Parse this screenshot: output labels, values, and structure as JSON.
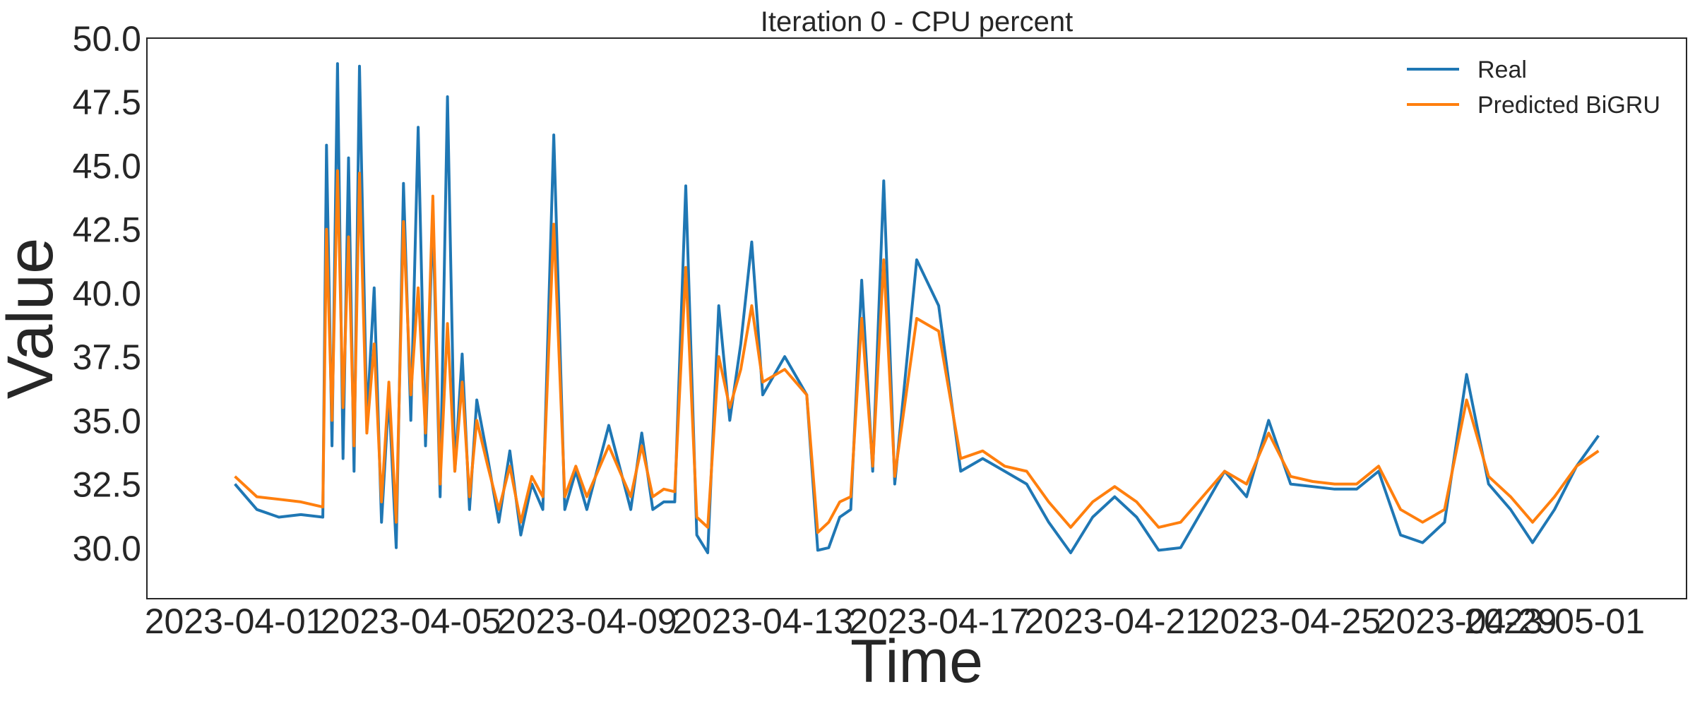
{
  "chart_data": {
    "type": "line",
    "title": "Iteration 0 - CPU percent",
    "xlabel": "Time",
    "ylabel": "Value",
    "x_ticks": [
      "2023-04-01",
      "2023-04-05",
      "2023-04-09",
      "2023-04-13",
      "2023-04-17",
      "2023-04-21",
      "2023-04-25",
      "2023-04-29",
      "2023-05-01"
    ],
    "y_ticks": [
      "30.0",
      "32.5",
      "35.0",
      "37.5",
      "40.0",
      "42.5",
      "45.0",
      "47.5",
      "50.0"
    ],
    "xlim": [
      "2023-03-30",
      "2023-05-04"
    ],
    "ylim": [
      28.0,
      50.0
    ],
    "grid": false,
    "legend_position": "top-right",
    "colors": {
      "Real": "#1f77b4",
      "Predicted BiGRU": "#ff7f0e"
    },
    "series": [
      {
        "name": "Real",
        "x": [
          "2023-04-01",
          "2023-04-01T12:00",
          "2023-04-02",
          "2023-04-02T12:00",
          "2023-04-03",
          "2023-04-03T02:00",
          "2023-04-03T05:00",
          "2023-04-03T08:00",
          "2023-04-03T11:00",
          "2023-04-03T14:00",
          "2023-04-03T17:00",
          "2023-04-03T20:00",
          "2023-04-04",
          "2023-04-04T04:00",
          "2023-04-04T08:00",
          "2023-04-04T12:00",
          "2023-04-04T16:00",
          "2023-04-04T20:00",
          "2023-04-05",
          "2023-04-05T04:00",
          "2023-04-05T08:00",
          "2023-04-05T12:00",
          "2023-04-05T16:00",
          "2023-04-05T20:00",
          "2023-04-06",
          "2023-04-06T04:00",
          "2023-04-06T08:00",
          "2023-04-06T12:00",
          "2023-04-06T18:00",
          "2023-04-07",
          "2023-04-07T06:00",
          "2023-04-07T12:00",
          "2023-04-07T18:00",
          "2023-04-08",
          "2023-04-08T06:00",
          "2023-04-08T12:00",
          "2023-04-08T18:00",
          "2023-04-09",
          "2023-04-09T12:00",
          "2023-04-10",
          "2023-04-10T06:00",
          "2023-04-10T12:00",
          "2023-04-10T18:00",
          "2023-04-11",
          "2023-04-11T06:00",
          "2023-04-11T12:00",
          "2023-04-11T18:00",
          "2023-04-12",
          "2023-04-12T06:00",
          "2023-04-12T12:00",
          "2023-04-12T18:00",
          "2023-04-13",
          "2023-04-13T12:00",
          "2023-04-14",
          "2023-04-14T06:00",
          "2023-04-14T12:00",
          "2023-04-14T18:00",
          "2023-04-15",
          "2023-04-15T06:00",
          "2023-04-15T12:00",
          "2023-04-15T18:00",
          "2023-04-16",
          "2023-04-16T12:00",
          "2023-04-17",
          "2023-04-17T12:00",
          "2023-04-18",
          "2023-04-18T12:00",
          "2023-04-19",
          "2023-04-19T12:00",
          "2023-04-20",
          "2023-04-20T12:00",
          "2023-04-21",
          "2023-04-21T12:00",
          "2023-04-22",
          "2023-04-22T12:00",
          "2023-04-23",
          "2023-04-23T12:00",
          "2023-04-24",
          "2023-04-24T12:00",
          "2023-04-25",
          "2023-04-25T12:00",
          "2023-04-26",
          "2023-04-26T12:00",
          "2023-04-27",
          "2023-04-27T12:00",
          "2023-04-28",
          "2023-04-28T12:00",
          "2023-04-29",
          "2023-04-29T12:00",
          "2023-04-30",
          "2023-04-30T12:00",
          "2023-05-01",
          "2023-05-01T12:00",
          "2023-05-02"
        ],
        "values": [
          32.5,
          31.5,
          31.2,
          31.3,
          31.2,
          45.8,
          34.0,
          49.0,
          33.5,
          45.3,
          33.0,
          48.9,
          35.0,
          40.2,
          31.0,
          36.0,
          30.0,
          44.3,
          35.0,
          46.5,
          34.0,
          43.0,
          32.0,
          47.7,
          33.0,
          37.6,
          31.5,
          35.8,
          33.5,
          31.0,
          33.8,
          30.5,
          32.5,
          31.5,
          46.2,
          31.5,
          33.0,
          31.5,
          34.8,
          31.5,
          34.5,
          31.5,
          31.8,
          31.8,
          44.2,
          30.5,
          29.8,
          39.5,
          35.0,
          38.0,
          42.0,
          36.0,
          37.5,
          36.0,
          29.9,
          30.0,
          31.2,
          31.5,
          40.5,
          33.0,
          44.4,
          32.5,
          41.3,
          39.5,
          33.0,
          33.5,
          33.0,
          32.5,
          31.0,
          29.8,
          31.2,
          32.0,
          31.2,
          29.9,
          30.0,
          31.5,
          33.0,
          32.0,
          35.0,
          32.5,
          32.4,
          32.3,
          32.3,
          33.0,
          30.5,
          30.2,
          31.0,
          36.8,
          32.5,
          31.5,
          30.2,
          31.5,
          33.2,
          34.4
        ]
      },
      {
        "name": "Predicted BiGRU",
        "x": [
          "2023-04-01",
          "2023-04-01T12:00",
          "2023-04-02",
          "2023-04-02T12:00",
          "2023-04-03",
          "2023-04-03T02:00",
          "2023-04-03T05:00",
          "2023-04-03T08:00",
          "2023-04-03T11:00",
          "2023-04-03T14:00",
          "2023-04-03T17:00",
          "2023-04-03T20:00",
          "2023-04-04",
          "2023-04-04T04:00",
          "2023-04-04T08:00",
          "2023-04-04T12:00",
          "2023-04-04T16:00",
          "2023-04-04T20:00",
          "2023-04-05",
          "2023-04-05T04:00",
          "2023-04-05T08:00",
          "2023-04-05T12:00",
          "2023-04-05T16:00",
          "2023-04-05T20:00",
          "2023-04-06",
          "2023-04-06T04:00",
          "2023-04-06T08:00",
          "2023-04-06T12:00",
          "2023-04-06T18:00",
          "2023-04-07",
          "2023-04-07T06:00",
          "2023-04-07T12:00",
          "2023-04-07T18:00",
          "2023-04-08",
          "2023-04-08T06:00",
          "2023-04-08T12:00",
          "2023-04-08T18:00",
          "2023-04-09",
          "2023-04-09T12:00",
          "2023-04-10",
          "2023-04-10T06:00",
          "2023-04-10T12:00",
          "2023-04-10T18:00",
          "2023-04-11",
          "2023-04-11T06:00",
          "2023-04-11T12:00",
          "2023-04-11T18:00",
          "2023-04-12",
          "2023-04-12T06:00",
          "2023-04-12T12:00",
          "2023-04-12T18:00",
          "2023-04-13",
          "2023-04-13T12:00",
          "2023-04-14",
          "2023-04-14T06:00",
          "2023-04-14T12:00",
          "2023-04-14T18:00",
          "2023-04-15",
          "2023-04-15T06:00",
          "2023-04-15T12:00",
          "2023-04-15T18:00",
          "2023-04-16",
          "2023-04-16T12:00",
          "2023-04-17",
          "2023-04-17T12:00",
          "2023-04-18",
          "2023-04-18T12:00",
          "2023-04-19",
          "2023-04-19T12:00",
          "2023-04-20",
          "2023-04-20T12:00",
          "2023-04-21",
          "2023-04-21T12:00",
          "2023-04-22",
          "2023-04-22T12:00",
          "2023-04-23",
          "2023-04-23T12:00",
          "2023-04-24",
          "2023-04-24T12:00",
          "2023-04-25",
          "2023-04-25T12:00",
          "2023-04-26",
          "2023-04-26T12:00",
          "2023-04-27",
          "2023-04-27T12:00",
          "2023-04-28",
          "2023-04-28T12:00",
          "2023-04-29",
          "2023-04-29T12:00",
          "2023-04-30",
          "2023-04-30T12:00",
          "2023-05-01",
          "2023-05-01T12:00",
          "2023-05-02"
        ],
        "values": [
          32.8,
          32.0,
          31.9,
          31.8,
          31.6,
          42.5,
          35.0,
          44.8,
          35.5,
          42.2,
          34.0,
          44.7,
          34.5,
          38.0,
          31.8,
          36.5,
          31.0,
          42.8,
          36.0,
          40.2,
          34.5,
          43.8,
          32.5,
          38.8,
          33.0,
          36.5,
          32.0,
          35.0,
          33.2,
          31.5,
          33.2,
          31.0,
          32.8,
          32.0,
          42.7,
          32.0,
          33.2,
          32.0,
          34.0,
          32.0,
          34.0,
          32.0,
          32.3,
          32.2,
          41.0,
          31.2,
          30.8,
          37.5,
          35.5,
          37.0,
          39.5,
          36.5,
          37.0,
          36.0,
          30.6,
          31.0,
          31.8,
          32.0,
          39.0,
          33.2,
          41.3,
          32.8,
          39.0,
          38.5,
          33.5,
          33.8,
          33.2,
          33.0,
          31.8,
          30.8,
          31.8,
          32.4,
          31.8,
          30.8,
          31.0,
          32.0,
          33.0,
          32.5,
          34.5,
          32.8,
          32.6,
          32.5,
          32.5,
          33.2,
          31.5,
          31.0,
          31.5,
          35.8,
          32.8,
          32.0,
          31.0,
          32.0,
          33.2,
          33.8
        ]
      }
    ]
  }
}
